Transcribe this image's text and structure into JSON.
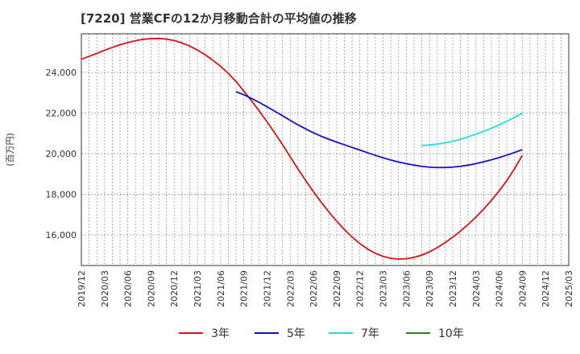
{
  "chart_data": {
    "type": "line",
    "title": "[7220]  営業CFの12か月移動合計の平均値の推移",
    "ylabel": "(百万円)",
    "xlabel": "",
    "ylim": [
      14500,
      25900
    ],
    "yticks": [
      16000,
      18000,
      20000,
      22000,
      24000
    ],
    "ytick_labels": [
      "16,000",
      "18,000",
      "20,000",
      "22,000",
      "24,000"
    ],
    "x_start": "2019-12",
    "x_end": "2025-03",
    "xtick_labels": [
      "2019/12",
      "2020/03",
      "2020/06",
      "2020/09",
      "2020/12",
      "2021/03",
      "2021/06",
      "2021/09",
      "2021/12",
      "2022/03",
      "2022/06",
      "2022/09",
      "2022/12",
      "2023/03",
      "2023/06",
      "2023/09",
      "2023/12",
      "2024/03",
      "2024/06",
      "2024/09",
      "2024/12",
      "2025/03"
    ],
    "grid": true,
    "legend_position": "bottom",
    "series": [
      {
        "name": "3年",
        "color": "#dd1111",
        "points": [
          [
            "2019-12",
            24650
          ],
          [
            "2020-01",
            24790
          ],
          [
            "2020-02",
            24930
          ],
          [
            "2020-03",
            25090
          ],
          [
            "2020-04",
            25230
          ],
          [
            "2020-05",
            25360
          ],
          [
            "2020-06",
            25470
          ],
          [
            "2020-07",
            25560
          ],
          [
            "2020-08",
            25630
          ],
          [
            "2020-09",
            25660
          ],
          [
            "2020-10",
            25670
          ],
          [
            "2020-11",
            25640
          ],
          [
            "2020-12",
            25570
          ],
          [
            "2021-01",
            25450
          ],
          [
            "2021-02",
            25300
          ],
          [
            "2021-03",
            25100
          ],
          [
            "2021-04",
            24870
          ],
          [
            "2021-05",
            24600
          ],
          [
            "2021-06",
            24300
          ],
          [
            "2021-07",
            23950
          ],
          [
            "2021-08",
            23550
          ],
          [
            "2021-09",
            23080
          ],
          [
            "2021-10",
            22600
          ],
          [
            "2021-11",
            22100
          ],
          [
            "2021-12",
            21570
          ],
          [
            "2022-01",
            21020
          ],
          [
            "2022-02",
            20450
          ],
          [
            "2022-03",
            19850
          ],
          [
            "2022-04",
            19250
          ],
          [
            "2022-05",
            18680
          ],
          [
            "2022-06",
            18130
          ],
          [
            "2022-07",
            17620
          ],
          [
            "2022-08",
            17130
          ],
          [
            "2022-09",
            16680
          ],
          [
            "2022-10",
            16270
          ],
          [
            "2022-11",
            15900
          ],
          [
            "2022-12",
            15580
          ],
          [
            "2023-01",
            15310
          ],
          [
            "2023-02",
            15100
          ],
          [
            "2023-03",
            14950
          ],
          [
            "2023-04",
            14850
          ],
          [
            "2023-05",
            14820
          ],
          [
            "2023-06",
            14830
          ],
          [
            "2023-07",
            14900
          ],
          [
            "2023-08",
            15010
          ],
          [
            "2023-09",
            15170
          ],
          [
            "2023-10",
            15380
          ],
          [
            "2023-11",
            15620
          ],
          [
            "2023-12",
            15890
          ],
          [
            "2024-01",
            16190
          ],
          [
            "2024-02",
            16520
          ],
          [
            "2024-03",
            16880
          ],
          [
            "2024-04",
            17270
          ],
          [
            "2024-05",
            17700
          ],
          [
            "2024-06",
            18170
          ],
          [
            "2024-07",
            18680
          ],
          [
            "2024-08",
            19260
          ],
          [
            "2024-09",
            19920
          ]
        ]
      },
      {
        "name": "5年",
        "color": "#1111cc",
        "points": [
          [
            "2021-08",
            23050
          ],
          [
            "2021-09",
            22900
          ],
          [
            "2021-10",
            22720
          ],
          [
            "2021-11",
            22520
          ],
          [
            "2021-12",
            22310
          ],
          [
            "2022-01",
            22090
          ],
          [
            "2022-02",
            21870
          ],
          [
            "2022-03",
            21640
          ],
          [
            "2022-04",
            21420
          ],
          [
            "2022-05",
            21220
          ],
          [
            "2022-06",
            21030
          ],
          [
            "2022-07",
            20860
          ],
          [
            "2022-08",
            20710
          ],
          [
            "2022-09",
            20570
          ],
          [
            "2022-10",
            20440
          ],
          [
            "2022-11",
            20310
          ],
          [
            "2022-12",
            20180
          ],
          [
            "2023-01",
            20050
          ],
          [
            "2023-02",
            19920
          ],
          [
            "2023-03",
            19800
          ],
          [
            "2023-04",
            19690
          ],
          [
            "2023-05",
            19590
          ],
          [
            "2023-06",
            19510
          ],
          [
            "2023-07",
            19440
          ],
          [
            "2023-08",
            19380
          ],
          [
            "2023-09",
            19340
          ],
          [
            "2023-10",
            19320
          ],
          [
            "2023-11",
            19320
          ],
          [
            "2023-12",
            19340
          ],
          [
            "2024-01",
            19380
          ],
          [
            "2024-02",
            19440
          ],
          [
            "2024-03",
            19510
          ],
          [
            "2024-04",
            19600
          ],
          [
            "2024-05",
            19700
          ],
          [
            "2024-06",
            19810
          ],
          [
            "2024-07",
            19930
          ],
          [
            "2024-08",
            20060
          ],
          [
            "2024-09",
            20200
          ]
        ]
      },
      {
        "name": "7年",
        "color": "#22dddd",
        "points": [
          [
            "2023-08",
            20400
          ],
          [
            "2023-09",
            20430
          ],
          [
            "2023-10",
            20470
          ],
          [
            "2023-11",
            20530
          ],
          [
            "2023-12",
            20610
          ],
          [
            "2024-01",
            20710
          ],
          [
            "2024-02",
            20830
          ],
          [
            "2024-03",
            20960
          ],
          [
            "2024-04",
            21100
          ],
          [
            "2024-05",
            21250
          ],
          [
            "2024-06",
            21420
          ],
          [
            "2024-07",
            21600
          ],
          [
            "2024-08",
            21790
          ],
          [
            "2024-09",
            21990
          ]
        ]
      },
      {
        "name": "10年",
        "color": "#228822",
        "points": []
      }
    ]
  }
}
